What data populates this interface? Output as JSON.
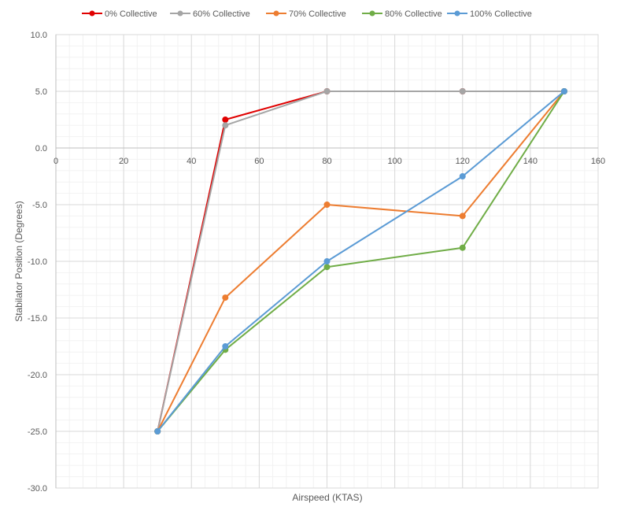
{
  "chart_data": {
    "type": "line",
    "xlabel": "Airspeed (KTAS)",
    "ylabel": "Stabilator Position (Degrees)",
    "xlim": [
      0,
      160
    ],
    "ylim": [
      -30,
      10
    ],
    "x_ticks": [
      "0",
      "20",
      "40",
      "60",
      "80",
      "100",
      "120",
      "140",
      "160"
    ],
    "y_ticks": [
      "10.0",
      "5.0",
      "0.0",
      "-5.0",
      "-10.0",
      "-15.0",
      "-20.0",
      "-25.0",
      "-30.0"
    ],
    "grid": true,
    "legend_position": "top",
    "series": [
      {
        "name": "0% Collective",
        "color": "#e00000",
        "x": [
          30,
          50,
          80,
          120,
          150
        ],
        "y": [
          -25,
          2.5,
          5,
          5,
          5
        ]
      },
      {
        "name": "60% Collective",
        "color": "#a5a5a5",
        "x": [
          30,
          50,
          80,
          120,
          150
        ],
        "y": [
          -25,
          2,
          5,
          5,
          5
        ]
      },
      {
        "name": "70% Collective",
        "color": "#ed7d31",
        "x": [
          30,
          50,
          80,
          120,
          150
        ],
        "y": [
          -25,
          -13.2,
          -5,
          -6,
          5
        ]
      },
      {
        "name": "80% Collective",
        "color": "#70ad47",
        "x": [
          30,
          50,
          80,
          120,
          150
        ],
        "y": [
          -25,
          -17.8,
          -10.5,
          -8.8,
          5
        ]
      },
      {
        "name": "100% Collective",
        "color": "#5b9bd5",
        "x": [
          30,
          50,
          80,
          120,
          150
        ],
        "y": [
          -25,
          -17.5,
          -10,
          -2.5,
          5
        ]
      }
    ]
  }
}
